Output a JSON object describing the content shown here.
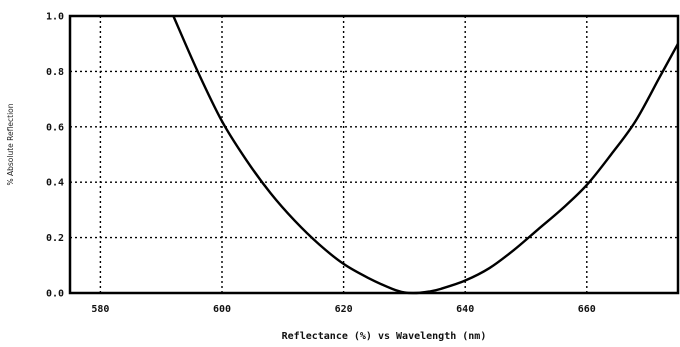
{
  "chart_data": {
    "type": "line",
    "xlabel": "Reflectance (%)  vs  Wavelength (nm)",
    "ylabel": "% Absolute Reflection",
    "xlim": [
      575,
      675
    ],
    "ylim": [
      0,
      1.0
    ],
    "x_ticks": [
      580,
      600,
      620,
      640,
      660
    ],
    "x_tick_labels": [
      "580",
      "600",
      "620",
      "640",
      "660"
    ],
    "y_ticks": [
      0,
      0.2,
      0.4,
      0.6,
      0.8,
      1.0
    ],
    "y_tick_labels": [
      "0.0",
      "0.2",
      "0.4",
      "0.6",
      "0.8",
      "1.0"
    ],
    "grid": true,
    "series": [
      {
        "x": [
          592,
          596,
          600,
          604,
          608,
          612,
          616,
          620,
          624,
          628,
          630,
          632,
          634,
          636,
          640,
          644,
          648,
          652,
          656,
          660,
          664,
          668,
          672,
          675
        ],
        "values": [
          1.0,
          0.8,
          0.62,
          0.48,
          0.36,
          0.26,
          0.175,
          0.105,
          0.055,
          0.015,
          0.002,
          0.0,
          0.005,
          0.015,
          0.045,
          0.09,
          0.155,
          0.23,
          0.305,
          0.39,
          0.5,
          0.62,
          0.78,
          0.9
        ]
      }
    ]
  }
}
